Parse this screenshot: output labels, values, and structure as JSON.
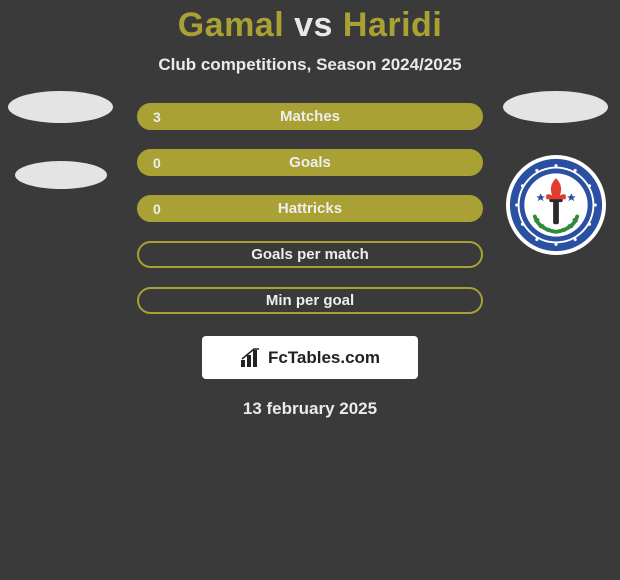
{
  "background_color": "#3a3a3a",
  "accent_color": "#a9a133",
  "title": {
    "player1": "Gamal",
    "vs": "vs",
    "player2": "Haridi",
    "player1_color": "#a9a133",
    "player2_color": "#a9a133",
    "vs_color": "#e8e8e8"
  },
  "subtitle": "Club competitions, Season 2024/2025",
  "stats": [
    {
      "label": "Matches",
      "left_value": "3",
      "filled": true
    },
    {
      "label": "Goals",
      "left_value": "0",
      "filled": true
    },
    {
      "label": "Hattricks",
      "left_value": "0",
      "filled": true
    },
    {
      "label": "Goals per match",
      "left_value": "",
      "filled": false
    },
    {
      "label": "Min per goal",
      "left_value": "",
      "filled": false
    }
  ],
  "placeholders": {
    "left_count": 2,
    "right_ellipse": true,
    "right_club_badge": true
  },
  "footer": {
    "logo_text": "FcTables.com",
    "date": "13 february 2025"
  },
  "club_badge_colors": {
    "ring_outer": "#2a4fa3",
    "ring_inner": "#ffffff",
    "center": "#ffffff",
    "torch_flame": "#e33b2e",
    "torch_handle": "#2a2a2a",
    "laurel": "#2e8b3d",
    "star": "#2a4fa3"
  }
}
